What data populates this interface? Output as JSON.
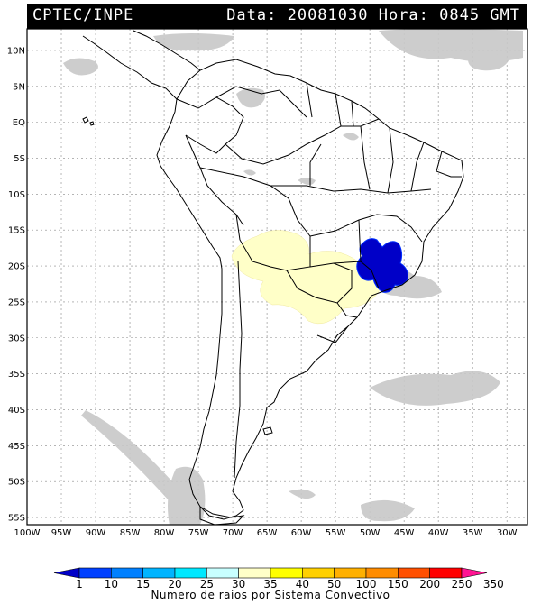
{
  "header": {
    "source": "CPTEC/INPE",
    "datetime": "Data: 20081030 Hora: 0845 GMT"
  },
  "map": {
    "lat_labels": [
      "10N",
      "5N",
      "EQ",
      "5S",
      "10S",
      "15S",
      "20S",
      "25S",
      "30S",
      "35S",
      "40S",
      "45S",
      "50S",
      "55S"
    ],
    "lon_labels": [
      "100W",
      "95W",
      "90W",
      "85W",
      "80W",
      "75W",
      "70W",
      "65W",
      "60W",
      "55W",
      "50W",
      "45W",
      "40W",
      "35W",
      "30W"
    ],
    "lat_values": [
      10,
      5,
      0,
      -5,
      -10,
      -15,
      -20,
      -25,
      -30,
      -35,
      -40,
      -45,
      -50,
      -55
    ],
    "lon_values": [
      -100,
      -95,
      -90,
      -85,
      -80,
      -75,
      -70,
      -65,
      -60,
      -55,
      -50,
      -45,
      -40,
      -35,
      -30
    ],
    "extent": {
      "lon_min": -100,
      "lon_max": -27,
      "lat_min": -56,
      "lat_max": 13
    },
    "grid": true,
    "cloud_color": "#c8c8c8",
    "coast_color": "#000000"
  },
  "legend": {
    "title": "Numero de raios por Sistema Convectivo",
    "ticks": [
      "1",
      "10",
      "15",
      "20",
      "25",
      "30",
      "35",
      "40",
      "50",
      "100",
      "150",
      "200",
      "250",
      "350"
    ],
    "colors": [
      "#0000c8",
      "#0040ff",
      "#0080ff",
      "#00b4ff",
      "#00e8ff",
      "#c8ffff",
      "#ffffc8",
      "#ffff00",
      "#ffd000",
      "#ffb000",
      "#ff8c00",
      "#ff5000",
      "#ff0000",
      "#ff1493"
    ]
  },
  "systems": [
    {
      "label": "",
      "intensity_class": "30-35",
      "color": "#ffffc8"
    },
    {
      "label": "",
      "intensity_class": "1-10",
      "color": "#0000c8"
    }
  ]
}
